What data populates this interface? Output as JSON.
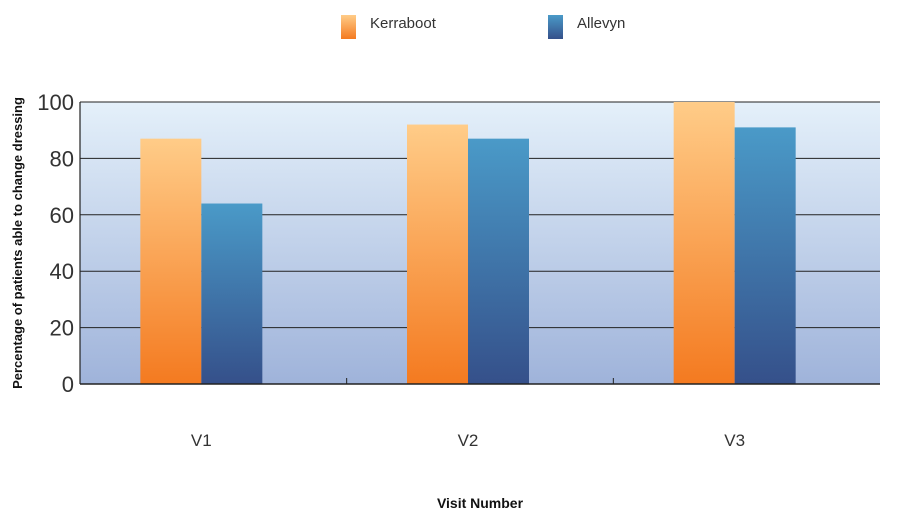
{
  "chart_data": {
    "type": "bar",
    "title": "",
    "xlabel": "Visit Number",
    "ylabel": "Percentage of patients able to change dressing",
    "categories": [
      "V1",
      "V2",
      "V3"
    ],
    "series": [
      {
        "name": "Kerraboot",
        "values": [
          87,
          92,
          100
        ]
      },
      {
        "name": "Allevyn",
        "values": [
          64,
          87,
          91
        ]
      }
    ],
    "ylim": [
      0,
      100
    ],
    "yticks": [
      0,
      20,
      40,
      60,
      80,
      100
    ],
    "grid": true,
    "legend": "top-center",
    "colors": {
      "kerraboot_top": "#FFCC88",
      "kerraboot_bottom": "#F47A20",
      "allevyn_top": "#4A9AC8",
      "allevyn_bottom": "#35508A",
      "plot_top": "#E4F0FA",
      "plot_bottom": "#9FB3DA"
    }
  }
}
